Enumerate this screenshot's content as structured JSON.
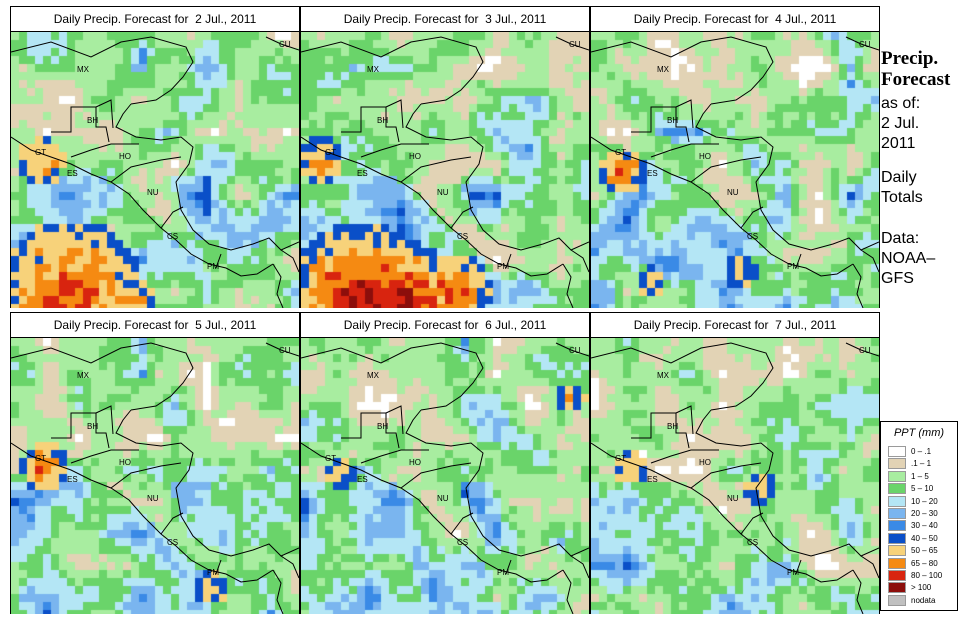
{
  "panels": [
    {
      "title": "Daily Precip. Forecast for  2 Jul., 2011"
    },
    {
      "title": "Daily Precip. Forecast for  3 Jul., 2011"
    },
    {
      "title": "Daily Precip. Forecast for  4 Jul., 2011"
    },
    {
      "title": "Daily Precip. Forecast for  5 Jul., 2011"
    },
    {
      "title": "Daily Precip. Forecast for  6 Jul., 2011"
    },
    {
      "title": "Daily Precip. Forecast for  7 Jul., 2011"
    }
  ],
  "country_labels": {
    "mx": "MX",
    "cu": "CU",
    "bh": "BH",
    "gt": "GT",
    "ho": "HO",
    "es": "ES",
    "nu": "NU",
    "cs": "CS",
    "pm": "PM"
  },
  "side": {
    "title_line1": "Precip.",
    "title_line2": "Forecast",
    "asof_label": "as of:",
    "asof_date": "2 Jul.",
    "asof_year": "2011",
    "totals_1": "Daily",
    "totals_2": "Totals",
    "data_1": "Data:",
    "data_2": "NOAA–",
    "data_3": "GFS"
  },
  "legend": {
    "title": "PPT (mm)",
    "items": [
      {
        "label": "0 – .1",
        "color": "#ffffff"
      },
      {
        "label": ".1 – 1",
        "color": "#e2d3b5"
      },
      {
        "label": "1 – 5",
        "color": "#a8eda0"
      },
      {
        "label": "5 – 10",
        "color": "#6ad46a"
      },
      {
        "label": "10 – 20",
        "color": "#b4e6f5"
      },
      {
        "label": "20 – 30",
        "color": "#7ab5ef"
      },
      {
        "label": "30 – 40",
        "color": "#3a8ae6"
      },
      {
        "label": "40 – 50",
        "color": "#0a4fc8"
      },
      {
        "label": "50 – 65",
        "color": "#f7d27a"
      },
      {
        "label": "65 – 80",
        "color": "#f58a12"
      },
      {
        "label": "80 – 100",
        "color": "#d8240f"
      },
      {
        "label": "> 100",
        "color": "#8c0e0b"
      },
      {
        "label": "nodata",
        "color": "#c0c0c0"
      }
    ]
  }
}
